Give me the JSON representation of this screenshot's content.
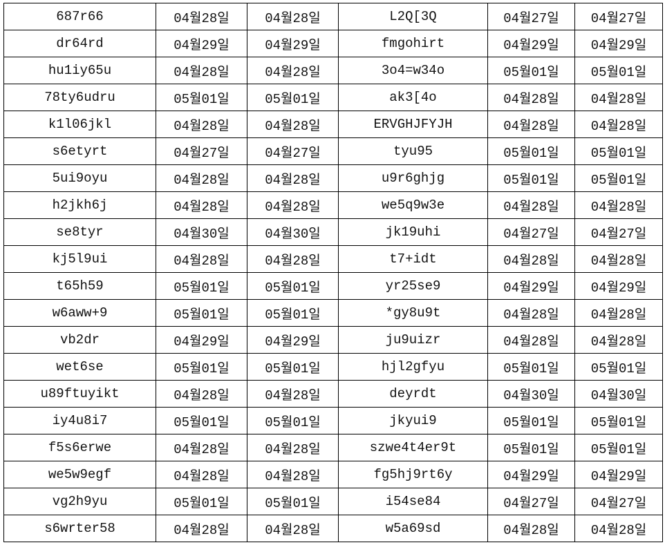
{
  "columns_count": 6,
  "rows": [
    [
      "687r66",
      "04월28일",
      "04월28일",
      "L2Q[3Q",
      "04월27일",
      "04월27일"
    ],
    [
      "dr64rd",
      "04월29일",
      "04월29일",
      "fmgohirt",
      "04월29일",
      "04월29일"
    ],
    [
      "hu1iy65u",
      "04월28일",
      "04월28일",
      "3o4=w34o",
      "05월01일",
      "05월01일"
    ],
    [
      "78ty6udru",
      "05월01일",
      "05월01일",
      "ak3[4o",
      "04월28일",
      "04월28일"
    ],
    [
      "k1l06jkl",
      "04월28일",
      "04월28일",
      "ERVGHJFYJH",
      "04월28일",
      "04월28일"
    ],
    [
      "s6etyrt",
      "04월27일",
      "04월27일",
      "tyu95",
      "05월01일",
      "05월01일"
    ],
    [
      "5ui9oyu",
      "04월28일",
      "04월28일",
      "u9r6ghjg",
      "05월01일",
      "05월01일"
    ],
    [
      "h2jkh6j",
      "04월28일",
      "04월28일",
      "we5q9w3e",
      "04월28일",
      "04월28일"
    ],
    [
      "se8tyr",
      "04월30일",
      "04월30일",
      "jk19uhi",
      "04월27일",
      "04월27일"
    ],
    [
      "kj5l9ui",
      "04월28일",
      "04월28일",
      "t7+idt",
      "04월28일",
      "04월28일"
    ],
    [
      "t65h59",
      "05월01일",
      "05월01일",
      "yr25se9",
      "04월29일",
      "04월29일"
    ],
    [
      "w6aww+9",
      "05월01일",
      "05월01일",
      "*gy8u9t",
      "04월28일",
      "04월28일"
    ],
    [
      "vb2dr",
      "04월29일",
      "04월29일",
      "ju9uizr",
      "04월28일",
      "04월28일"
    ],
    [
      "wet6se",
      "05월01일",
      "05월01일",
      "hjl2gfyu",
      "05월01일",
      "05월01일"
    ],
    [
      "u89ftuyikt",
      "04월28일",
      "04월28일",
      "deyrdt",
      "04월30일",
      "04월30일"
    ],
    [
      "iy4u8i7",
      "05월01일",
      "05월01일",
      "jkyui9",
      "05월01일",
      "05월01일"
    ],
    [
      "f5s6erwe",
      "04월28일",
      "04월28일",
      "szwe4t4er9t",
      "05월01일",
      "05월01일"
    ],
    [
      "we5w9egf",
      "04월28일",
      "04월28일",
      "fg5hj9rt6y",
      "04월29일",
      "04월29일"
    ],
    [
      "vg2h9yu",
      "05월01일",
      "05월01일",
      "i54se84",
      "04월27일",
      "04월27일"
    ],
    [
      "s6wrter58",
      "04월28일",
      "04월28일",
      "w5a69sd",
      "04월28일",
      "04월28일"
    ]
  ]
}
